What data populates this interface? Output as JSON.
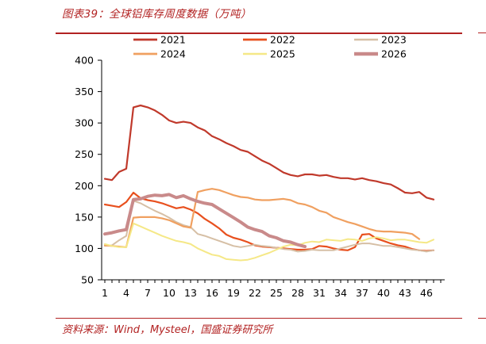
{
  "header": {
    "title": "图表39：全球铝库存周度数据（万吨）"
  },
  "footer": {
    "source": "资料来源：Wind，Mysteel，国盛证券研究所"
  },
  "chart_data": {
    "type": "line",
    "title": "",
    "xlabel": "",
    "ylabel": "",
    "ylim": [
      50,
      400
    ],
    "xlim": [
      1,
      48
    ],
    "yticks": [
      50,
      100,
      150,
      200,
      250,
      300,
      350,
      400
    ],
    "xticks": [
      1,
      4,
      7,
      10,
      13,
      16,
      19,
      22,
      25,
      28,
      31,
      34,
      37,
      40,
      43,
      46
    ],
    "grid": false,
    "legend_position": "top",
    "series": [
      {
        "name": "2021",
        "color": "#c0392b",
        "width": 2.2,
        "values": [
          211,
          209,
          222,
          227,
          325,
          328,
          325,
          320,
          313,
          304,
          300,
          302,
          300,
          293,
          288,
          279,
          274,
          268,
          263,
          257,
          254,
          247,
          240,
          235,
          228,
          221,
          217,
          215,
          218,
          218,
          216,
          217,
          214,
          212,
          212,
          210,
          212,
          209,
          207,
          204,
          202,
          196,
          189,
          188,
          190,
          181,
          178
        ]
      },
      {
        "name": "2022",
        "color": "#e8501e",
        "width": 2.2,
        "values": [
          170,
          168,
          166,
          174,
          189,
          180,
          177,
          175,
          172,
          168,
          164,
          166,
          162,
          156,
          147,
          140,
          132,
          122,
          117,
          114,
          110,
          105,
          103,
          102,
          101,
          100,
          99,
          98,
          98,
          99,
          104,
          103,
          100,
          98,
          97,
          102,
          122,
          123,
          116,
          112,
          108,
          105,
          103,
          99,
          97,
          96,
          97
        ]
      },
      {
        "name": "2023",
        "color": "#d6bfa5",
        "width": 2.0,
        "values": [
          104,
          105,
          113,
          120,
          176,
          172,
          166,
          160,
          155,
          149,
          142,
          137,
          134,
          123,
          120,
          116,
          112,
          108,
          104,
          102,
          104,
          106,
          104,
          103,
          101,
          99,
          98,
          95,
          96,
          98,
          97,
          97,
          97,
          100,
          103,
          106,
          108,
          108,
          106,
          104,
          104,
          102,
          100,
          98,
          97,
          95,
          97
        ]
      },
      {
        "name": "2024",
        "color": "#f0a060",
        "width": 2.2,
        "values": [
          105,
          104,
          103,
          102,
          149,
          150,
          150,
          150,
          148,
          145,
          140,
          135,
          133,
          190,
          193,
          195,
          193,
          189,
          185,
          182,
          181,
          178,
          177,
          177,
          178,
          179,
          177,
          172,
          170,
          166,
          160,
          157,
          150,
          146,
          142,
          139,
          135,
          131,
          128,
          127,
          127,
          126,
          125,
          123,
          115,
          null,
          null
        ]
      },
      {
        "name": "2025",
        "color": "#f5e887",
        "width": 2.0,
        "values": [
          107,
          104,
          102,
          102,
          140,
          135,
          130,
          125,
          120,
          116,
          112,
          110,
          107,
          100,
          95,
          90,
          88,
          83,
          82,
          81,
          82,
          85,
          89,
          93,
          98,
          103,
          106,
          105,
          109,
          111,
          110,
          114,
          113,
          112,
          115,
          114,
          112,
          116,
          118,
          116,
          113,
          114,
          114,
          112,
          110,
          109,
          114
        ]
      },
      {
        "name": "2026",
        "color": "#c98a8a",
        "width": 4.0,
        "values": [
          123,
          125,
          128,
          130,
          178,
          179,
          183,
          185,
          184,
          186,
          181,
          184,
          179,
          175,
          172,
          170,
          163,
          156,
          149,
          142,
          134,
          130,
          127,
          120,
          117,
          112,
          110,
          106,
          103,
          null,
          null,
          null,
          null,
          null,
          null,
          null,
          null,
          null,
          null,
          null,
          null,
          null,
          null,
          null,
          null,
          null,
          null
        ]
      }
    ]
  }
}
